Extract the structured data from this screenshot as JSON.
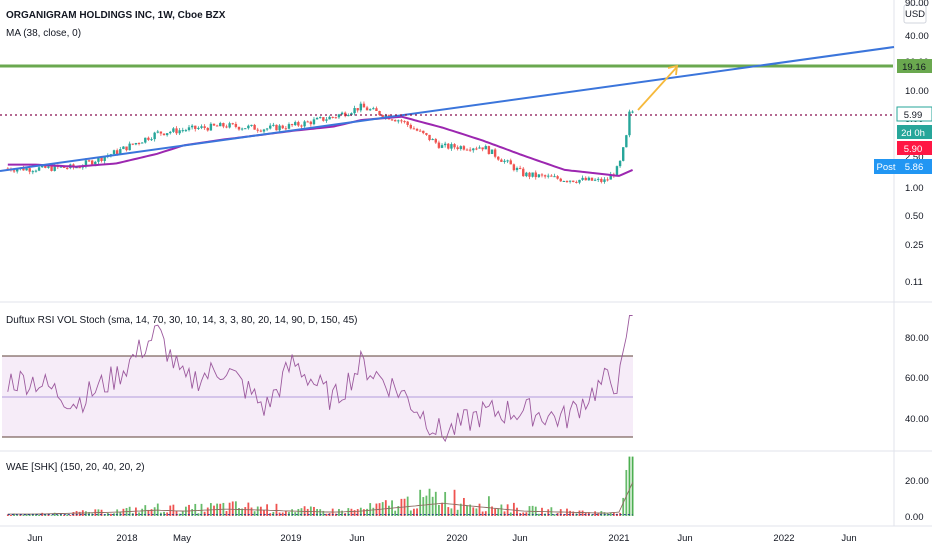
{
  "main_pane": {
    "title": "ORGANIGRAM HOLDINGS INC, 1W, Cboe BZX",
    "ma_label": "MA (38, close, 0)",
    "currency": "USD",
    "axis_scale": "log",
    "y_ticks": [
      "90.00",
      "40.00",
      "20.00",
      "10.00",
      "5.00",
      "2.50",
      "1.00",
      "0.50",
      "0.25",
      "0.11"
    ],
    "tags": {
      "resistance": {
        "label": "19.16",
        "value": 19.16,
        "color": "#6aa84f"
      },
      "last": {
        "label": "5.99",
        "value": 5.99,
        "color": "#26a69a"
      },
      "countdown": {
        "label": "2d 0h",
        "color": "#26a69a"
      },
      "red": {
        "label": "5.90",
        "value": 5.9,
        "color": "#ff1744"
      },
      "post": {
        "prefix": "Post",
        "label": "5.86",
        "value": 5.86,
        "color": "#2196f3"
      }
    },
    "colors": {
      "up": "#26a69a",
      "down": "#ef5350",
      "ma": "#9c27b0",
      "trend": "#3b75db",
      "projection": "#f6b93b"
    }
  },
  "rsi_pane": {
    "label": "Duftux RSI VOL Stoch (sma, 14, 70, 30, 10, 14, 3, 3, 80, 20, 14, 90, D, 150, 45)",
    "y_ticks": [
      "80.00",
      "60.00",
      "40.00"
    ],
    "upper": 70,
    "mid": 50,
    "lower": 30
  },
  "wae_pane": {
    "label": "WAE [SHK] (150, 20, 40, 20, 2)",
    "y_ticks": [
      "20.00",
      "0.00"
    ]
  },
  "x_axis": {
    "labels": [
      "Jun",
      "2018",
      "May",
      "2019",
      "Jun",
      "2020",
      "Jun",
      "2021",
      "Jun",
      "2022",
      "Jun"
    ]
  },
  "chart_data": [
    {
      "type": "line",
      "title": "ORGANIGRAM HOLDINGS INC, 1W, Cboe BZX",
      "scale": "log",
      "ylim": [
        0.1,
        90
      ],
      "x": [
        "2017-06",
        "2017-09",
        "2017-12",
        "2018-03",
        "2018-05",
        "2018-08",
        "2018-11",
        "2019-01",
        "2019-04",
        "2019-06",
        "2019-09",
        "2019-12",
        "2020-03",
        "2020-06",
        "2020-09",
        "2020-12",
        "2021-01",
        "2021-02"
      ],
      "series": [
        {
          "name": "close",
          "values": [
            1.55,
            1.6,
            2.3,
            3.6,
            3.9,
            4.3,
            4.0,
            4.3,
            5.3,
            6.7,
            4.8,
            2.6,
            2.6,
            1.35,
            1.2,
            1.15,
            1.6,
            5.99
          ]
        },
        {
          "name": "MA (38, close, 0)",
          "values": [
            1.7,
            1.62,
            1.75,
            2.2,
            2.7,
            3.1,
            3.5,
            3.8,
            4.2,
            4.9,
            5.3,
            4.1,
            3.0,
            2.1,
            1.5,
            1.35,
            1.3,
            1.5
          ]
        }
      ],
      "annotations": {
        "resistance": 19.16,
        "last_close_line": 5.99
      }
    },
    {
      "type": "line",
      "title": "Duftux RSI VOL Stoch (sma, 14, 70, 30, 10, 14, 3, 3, 80, 20, 14, 90, D, 150, 45)",
      "ylim": [
        22,
        92
      ],
      "levels": [
        70,
        50,
        30
      ],
      "x": [
        "2017-06",
        "2017-09",
        "2017-12",
        "2018-03",
        "2018-05",
        "2018-08",
        "2018-11",
        "2019-01",
        "2019-04",
        "2019-06",
        "2019-09",
        "2019-12",
        "2020-03",
        "2020-06",
        "2020-09",
        "2020-12",
        "2021-01",
        "2021-02"
      ],
      "values": [
        58,
        47,
        60,
        82,
        57,
        64,
        44,
        67,
        48,
        66,
        52,
        31,
        42,
        43,
        39,
        58,
        57,
        90
      ]
    },
    {
      "type": "bar",
      "title": "WAE [SHK] (150, 20, 40, 20, 2)",
      "ylim": [
        -3,
        36
      ],
      "x": [
        "2017-06",
        "2017-09",
        "2017-12",
        "2018-03",
        "2018-05",
        "2018-08",
        "2018-11",
        "2019-01",
        "2019-04",
        "2019-06",
        "2019-09",
        "2019-12",
        "2020-03",
        "2020-06",
        "2020-09",
        "2020-12",
        "2021-01",
        "2021-02"
      ],
      "values": [
        1,
        2,
        3,
        5,
        4,
        6,
        5,
        4,
        3,
        4,
        8,
        12,
        8,
        4,
        3,
        2,
        3,
        33
      ]
    }
  ]
}
